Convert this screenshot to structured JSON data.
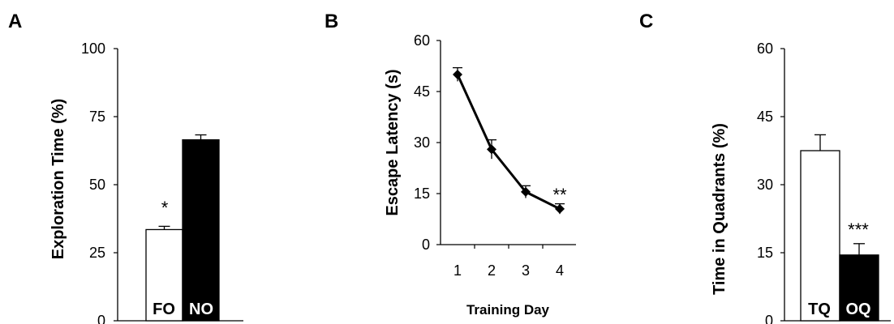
{
  "colors": {
    "axis": "#000000",
    "fill_white": "#ffffff",
    "fill_black": "#000000",
    "label_on_white": "#000000",
    "label_on_black": "#ffffff"
  },
  "chart_data": [
    {
      "panel": "A",
      "type": "bar",
      "ylabel": "Exploration Time (%)",
      "xlabel": "",
      "ylim": [
        0,
        100
      ],
      "yticks": [
        "0",
        "25",
        "50",
        "75",
        "100"
      ],
      "categories": [
        "FO",
        "NO"
      ],
      "values": [
        33.5,
        66.5
      ],
      "errors": [
        1.2,
        1.8
      ],
      "fill": [
        "white",
        "black"
      ],
      "annotations": [
        {
          "category": "FO",
          "text": "*"
        }
      ]
    },
    {
      "panel": "B",
      "type": "line",
      "ylabel": "Escape Latency (s)",
      "xlabel": "Training Day",
      "ylim": [
        0,
        60
      ],
      "yticks": [
        "0",
        "15",
        "30",
        "45",
        "60"
      ],
      "x": [
        1,
        2,
        3,
        4
      ],
      "xticks": [
        "1",
        "2",
        "3",
        "4"
      ],
      "values": [
        50,
        28,
        15.5,
        10.5
      ],
      "errors": [
        2,
        2.8,
        1.8,
        1.5
      ],
      "marker": "diamond",
      "annotations": [
        {
          "x": 4,
          "text": "**"
        }
      ]
    },
    {
      "panel": "C",
      "type": "bar",
      "ylabel": "Time in Quadrants (%)",
      "xlabel": "",
      "ylim": [
        0,
        60
      ],
      "yticks": [
        "0",
        "15",
        "30",
        "45",
        "60"
      ],
      "categories": [
        "TQ",
        "OQ"
      ],
      "values": [
        37.5,
        14.5
      ],
      "errors": [
        3.5,
        2.5
      ],
      "fill": [
        "white",
        "black"
      ],
      "annotations": [
        {
          "category": "OQ",
          "text": "***"
        }
      ]
    }
  ]
}
